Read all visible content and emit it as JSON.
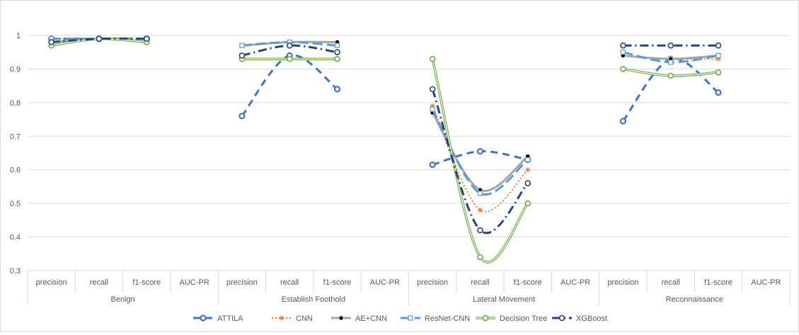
{
  "chart_data": {
    "type": "line",
    "title": "",
    "xlabel": "",
    "ylabel": "",
    "ylim": [
      0.3,
      1.0
    ],
    "yticks": [
      "0.3",
      "0.4",
      "0.5",
      "0.6",
      "0.7",
      "0.8",
      "0.9",
      "1"
    ],
    "grid": true,
    "legend_position": "bottom",
    "groups": [
      "Benign",
      "Establish Foothold",
      "Lateral Movement",
      "Reconnaissance"
    ],
    "metrics": [
      "precision",
      "recall",
      "f1-score",
      "AUC-PR"
    ],
    "series": [
      {
        "name": "ATTILA",
        "color": "#4472C4",
        "style": "dashed-thick",
        "marker": "open-circle",
        "values": [
          [
            0.99,
            0.99,
            0.99,
            null
          ],
          [
            0.76,
            0.94,
            0.84,
            null
          ],
          [
            0.615,
            0.655,
            0.63,
            null
          ],
          [
            0.745,
            0.93,
            0.83,
            null
          ]
        ]
      },
      {
        "name": "CNN",
        "color": "#ED7D31",
        "style": "dotted",
        "marker": "star",
        "values": [
          [
            0.98,
            0.99,
            0.98,
            null
          ],
          [
            0.97,
            0.98,
            0.98,
            null
          ],
          [
            0.79,
            0.48,
            0.6,
            null
          ],
          [
            0.94,
            0.93,
            0.93,
            null
          ]
        ]
      },
      {
        "name": "AE+CNN",
        "color": "#A5A5A5",
        "style": "solid-thick",
        "marker": "filled-dot",
        "values": [
          [
            0.98,
            0.99,
            0.98,
            null
          ],
          [
            0.97,
            0.98,
            0.98,
            null
          ],
          [
            0.77,
            0.54,
            0.64,
            null
          ],
          [
            0.94,
            0.93,
            0.94,
            null
          ]
        ]
      },
      {
        "name": "ResNet-CNN",
        "color": "#5B9BD5",
        "style": "long-dash",
        "marker": "open-square",
        "values": [
          [
            0.99,
            0.99,
            0.99,
            null
          ],
          [
            0.97,
            0.98,
            0.97,
            null
          ],
          [
            0.78,
            0.53,
            0.63,
            null
          ],
          [
            0.95,
            0.92,
            0.94,
            null
          ]
        ]
      },
      {
        "name": "Decision Tree",
        "color": "#70AD47",
        "style": "double",
        "marker": "open-circle",
        "values": [
          [
            0.97,
            0.99,
            0.98,
            null
          ],
          [
            0.93,
            0.93,
            0.93,
            null
          ],
          [
            0.93,
            0.34,
            0.5,
            null
          ],
          [
            0.9,
            0.88,
            0.89,
            null
          ]
        ]
      },
      {
        "name": "XGBoost",
        "color": "#264478",
        "style": "dash-dot",
        "marker": "open-circle",
        "values": [
          [
            0.98,
            0.99,
            0.99,
            null
          ],
          [
            0.94,
            0.97,
            0.95,
            null
          ],
          [
            0.84,
            0.42,
            0.56,
            null
          ],
          [
            0.97,
            0.97,
            0.97,
            null
          ]
        ]
      }
    ]
  }
}
